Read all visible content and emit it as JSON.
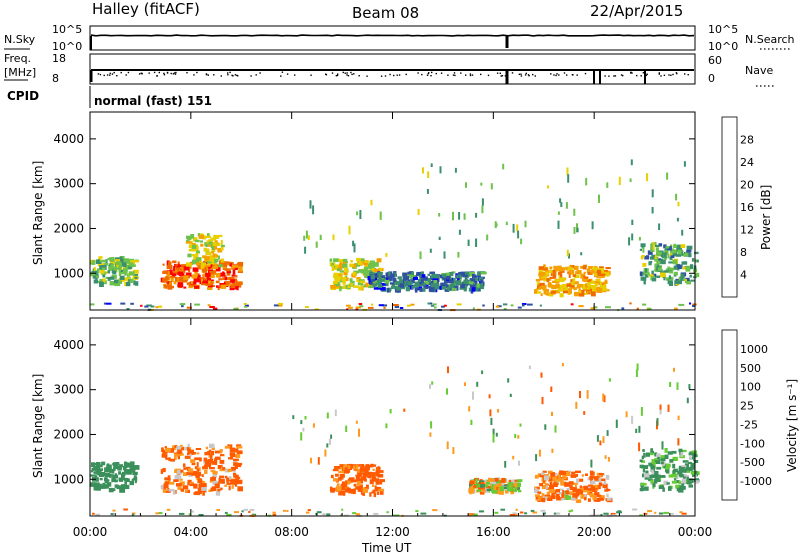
{
  "header": {
    "station": "Halley (fitACF)",
    "beam": "Beam 08",
    "date": "22/Apr/2015"
  },
  "status_panels": {
    "nsky_label": "N.Sky",
    "nsky_ticks": [
      "10^5",
      "10^0"
    ],
    "nsearch_label": "N.Search",
    "nsearch_ticks": [
      "10^5",
      "10^0"
    ],
    "freq_label_line1": "Freq.",
    "freq_label_line2": "[MHz]",
    "freq_ticks": [
      "18",
      "8"
    ],
    "nave_label": "Nave",
    "nave_ticks": [
      "60",
      "0"
    ],
    "cpid_label": "CPID",
    "cpid_value": "normal (fast) 151"
  },
  "colors": {
    "power": [
      "#0000ff",
      "#2f4fa0",
      "#3b8f6f",
      "#6cc24a",
      "#e8d000",
      "#f5a000",
      "#f06a00",
      "#ff0000"
    ],
    "velocity": [
      "#ff0000",
      "#ff5a00",
      "#ff9a1e",
      "#f5c000",
      "#c8c8c8",
      "#66cc33",
      "#3a8f5a",
      "#2a5fa0",
      "#1a3faa"
    ]
  },
  "chart_data": [
    {
      "type": "heatmap",
      "title": "",
      "xlabel": "Time UT",
      "ylabel": "Slant Range [km]",
      "xlim": [
        "00:00",
        "24:00"
      ],
      "ylim": [
        180,
        4600
      ],
      "x_ticks": [
        "00:00",
        "04:00",
        "08:00",
        "12:00",
        "16:00",
        "20:00",
        "00:00"
      ],
      "y_ticks": [
        1000,
        2000,
        3000,
        4000
      ],
      "colorbar_label": "Power [dB]",
      "colorbar_ticks": [
        "4",
        "8",
        "12",
        "16",
        "20",
        "24",
        "28"
      ],
      "colorbar_range": [
        0,
        32
      ],
      "echo_regions": [
        {
          "t_start": 0.0,
          "t_end": 1.8,
          "r_low": 800,
          "r_high": 1400,
          "power": 14
        },
        {
          "t_start": 2.8,
          "t_end": 5.9,
          "r_low": 700,
          "r_high": 1300,
          "power": 26
        },
        {
          "t_start": 3.8,
          "t_end": 5.2,
          "r_low": 1200,
          "r_high": 1900,
          "power": 18
        },
        {
          "t_start": 9.5,
          "t_end": 11.5,
          "r_low": 700,
          "r_high": 1350,
          "power": 18
        },
        {
          "t_start": 11.0,
          "t_end": 15.5,
          "r_low": 650,
          "r_high": 1050,
          "power": 8
        },
        {
          "t_start": 17.6,
          "t_end": 20.5,
          "r_low": 550,
          "r_high": 1200,
          "power": 22
        },
        {
          "t_start": 21.8,
          "t_end": 24.0,
          "r_low": 800,
          "r_high": 1700,
          "power": 12
        }
      ]
    },
    {
      "type": "heatmap",
      "title": "",
      "xlabel": "Time UT",
      "ylabel": "Slant Range [km]",
      "xlim": [
        "00:00",
        "24:00"
      ],
      "ylim": [
        180,
        4600
      ],
      "x_ticks": [
        "00:00",
        "04:00",
        "08:00",
        "12:00",
        "16:00",
        "20:00",
        "00:00"
      ],
      "y_ticks": [
        1000,
        2000,
        3000,
        4000
      ],
      "colorbar_label": "Velocity [m s⁻¹]",
      "colorbar_ticks": [
        "1000",
        "500",
        "100",
        "25",
        "-25",
        "-100",
        "-500",
        "-1000"
      ],
      "colorbar_range": [
        -1200,
        1200
      ],
      "echo_regions": [
        {
          "t_start": 0.0,
          "t_end": 1.8,
          "r_low": 800,
          "r_high": 1400,
          "velocity": 300
        },
        {
          "t_start": 2.8,
          "t_end": 5.9,
          "r_low": 700,
          "r_high": 1800,
          "velocity": -150
        },
        {
          "t_start": 9.5,
          "t_end": 11.5,
          "r_low": 700,
          "r_high": 1350,
          "velocity": -200
        },
        {
          "t_start": 15.0,
          "t_end": 17.0,
          "r_low": 750,
          "r_high": 1050,
          "velocity": 0
        },
        {
          "t_start": 17.6,
          "t_end": 20.5,
          "r_low": 550,
          "r_high": 1200,
          "velocity": -120
        },
        {
          "t_start": 21.8,
          "t_end": 24.0,
          "r_low": 800,
          "r_high": 1700,
          "velocity": 150
        }
      ]
    }
  ]
}
